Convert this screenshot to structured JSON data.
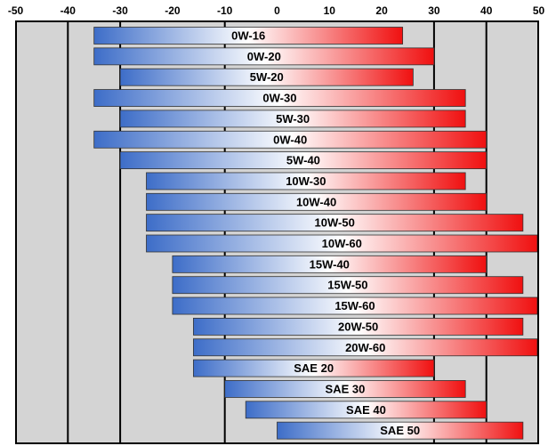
{
  "chart_data": {
    "type": "bar",
    "orientation": "horizontal-range",
    "title": "",
    "xlabel": "",
    "ylabel": "",
    "xlim": [
      -52,
      52
    ],
    "x_ticks": [
      -50,
      -40,
      -30,
      -20,
      -10,
      0,
      10,
      20,
      30,
      40,
      50
    ],
    "x_tick_labels": [
      "-50",
      "-40",
      "-30",
      "-20",
      "-10",
      "0",
      "10",
      "20",
      "30",
      "40",
      "50"
    ],
    "gridlines_x": [
      -40,
      -30,
      -10,
      30,
      40
    ],
    "grid": true,
    "colors": {
      "background": "#d4d4d4",
      "gridline": "#000000",
      "cold_end": "#3d6dc8",
      "middle": "#ffffff",
      "hot_end": "#f01010"
    },
    "categories": [
      "0W-16",
      "0W-20",
      "5W-20",
      "0W-30",
      "5W-30",
      "0W-40",
      "5W-40",
      "10W-30",
      "10W-40",
      "10W-50",
      "10W-60",
      "15W-40",
      "15W-50",
      "15W-60",
      "20W-50",
      "20W-60",
      "SAE 20",
      "SAE 30",
      "SAE 40",
      "SAE 50"
    ],
    "ranges": [
      [
        -35,
        24
      ],
      [
        -35,
        30
      ],
      [
        -30,
        26
      ],
      [
        -35,
        36
      ],
      [
        -30,
        36
      ],
      [
        -35,
        40
      ],
      [
        -30,
        40
      ],
      [
        -25,
        36
      ],
      [
        -25,
        40
      ],
      [
        -25,
        47
      ],
      [
        -25,
        50
      ],
      [
        -20,
        40
      ],
      [
        -20,
        47
      ],
      [
        -20,
        50
      ],
      [
        -16,
        47
      ],
      [
        -16,
        50
      ],
      [
        -16,
        30
      ],
      [
        -10,
        36
      ],
      [
        -6,
        40
      ],
      [
        0,
        47
      ]
    ]
  }
}
